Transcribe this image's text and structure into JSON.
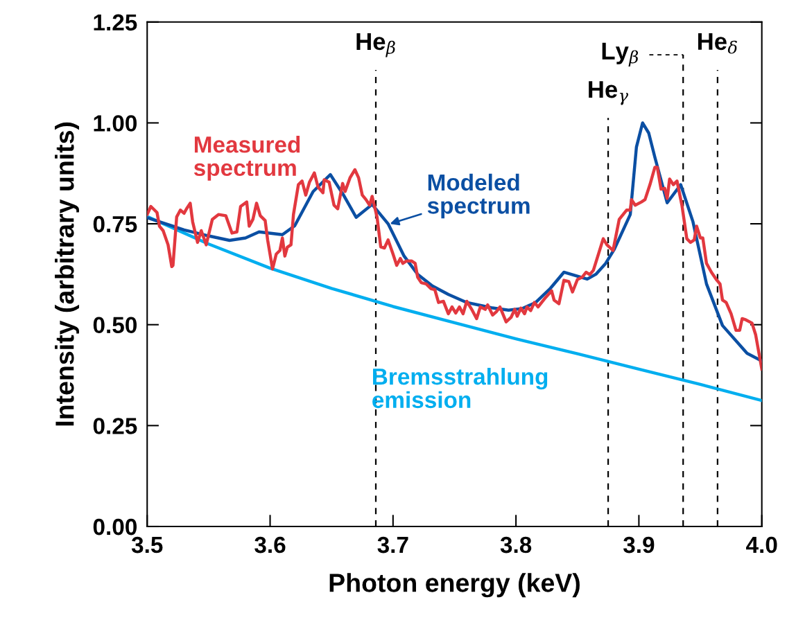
{
  "chart_data": {
    "type": "line",
    "xlabel": "Photon energy (keV)",
    "ylabel": "Intensity (arbitrary units)",
    "xlim": [
      3.5,
      4.0
    ],
    "ylim": [
      0,
      1.25
    ],
    "xticks": [
      3.5,
      3.6,
      3.7,
      3.8,
      3.9,
      {
        "value": 4.0,
        "label": "4.0"
      }
    ],
    "yticks": [
      {
        "value": 0,
        "label": "0.00"
      },
      {
        "value": 0.25,
        "label": "0.25"
      },
      {
        "value": 0.5,
        "label": "0.50"
      },
      {
        "value": 0.75,
        "label": "0.75"
      },
      {
        "value": 1.0,
        "label": "1.00"
      },
      {
        "value": 1.25,
        "label": "1.25"
      }
    ],
    "grid": false,
    "line_style": "solid",
    "marker": "none",
    "series": [
      {
        "name": "Measured spectrum",
        "color": "#e2383f",
        "x": [
          3.5,
          3.503,
          3.505,
          3.508,
          3.51,
          3.513,
          3.517,
          3.52,
          3.521,
          3.524,
          3.527,
          3.53,
          3.532,
          3.535,
          3.537,
          3.541,
          3.544,
          3.548,
          3.553,
          3.558,
          3.564,
          3.569,
          3.573,
          3.576,
          3.581,
          3.583,
          3.586,
          3.589,
          3.592,
          3.596,
          3.598,
          3.602,
          3.605,
          3.608,
          3.61,
          3.612,
          3.614,
          3.617,
          3.619,
          3.623,
          3.626,
          3.629,
          3.632,
          3.636,
          3.639,
          3.643,
          3.644,
          3.648,
          3.652,
          3.655,
          3.659,
          3.661,
          3.665,
          3.669,
          3.672,
          3.675,
          3.678,
          3.681,
          3.683,
          3.687,
          3.69,
          3.693,
          3.696,
          3.7,
          3.703,
          3.706,
          3.708,
          3.711,
          3.715,
          3.718,
          3.72,
          3.723,
          3.727,
          3.731,
          3.734,
          3.737,
          3.741,
          3.745,
          3.748,
          3.751,
          3.754,
          3.757,
          3.76,
          3.764,
          3.768,
          3.771,
          3.775,
          3.777,
          3.781,
          3.784,
          3.787,
          3.792,
          3.796,
          3.799,
          3.801,
          3.804,
          3.807,
          3.809,
          3.812,
          3.815,
          3.818,
          3.824,
          3.829,
          3.831,
          3.835,
          3.839,
          3.843,
          3.846,
          3.85,
          3.854,
          3.857,
          3.86,
          3.863,
          3.866,
          3.871,
          3.874,
          3.879,
          3.884,
          3.89,
          3.893,
          3.894,
          3.897,
          3.902,
          3.905,
          3.909,
          3.913,
          3.915,
          3.918,
          3.921,
          3.923,
          3.925,
          3.928,
          3.931,
          3.935,
          3.939,
          3.942,
          3.945,
          3.947,
          3.95,
          3.952,
          3.955,
          3.959,
          3.963,
          3.966,
          3.968,
          3.971,
          3.975,
          3.979,
          3.982,
          3.984,
          3.987,
          3.992,
          3.995,
          4.0
        ],
        "values": [
          0.773,
          0.793,
          0.787,
          0.778,
          0.744,
          0.733,
          0.698,
          0.644,
          0.647,
          0.767,
          0.784,
          0.776,
          0.787,
          0.801,
          0.755,
          0.704,
          0.733,
          0.698,
          0.761,
          0.773,
          0.77,
          0.727,
          0.73,
          0.793,
          0.804,
          0.744,
          0.761,
          0.801,
          0.77,
          0.758,
          0.71,
          0.638,
          0.675,
          0.684,
          0.715,
          0.67,
          0.692,
          0.698,
          0.773,
          0.847,
          0.856,
          0.821,
          0.853,
          0.876,
          0.841,
          0.827,
          0.859,
          0.853,
          0.796,
          0.787,
          0.85,
          0.83,
          0.864,
          0.884,
          0.864,
          0.821,
          0.81,
          0.796,
          0.818,
          0.767,
          0.693,
          0.69,
          0.71,
          0.675,
          0.647,
          0.664,
          0.652,
          0.658,
          0.658,
          0.652,
          0.618,
          0.604,
          0.601,
          0.589,
          0.587,
          0.555,
          0.558,
          0.527,
          0.544,
          0.529,
          0.544,
          0.527,
          0.558,
          0.538,
          0.515,
          0.544,
          0.538,
          0.549,
          0.524,
          0.532,
          0.544,
          0.507,
          0.518,
          0.538,
          0.521,
          0.541,
          0.527,
          0.544,
          0.535,
          0.555,
          0.544,
          0.567,
          0.584,
          0.561,
          0.552,
          0.61,
          0.607,
          0.581,
          0.612,
          0.618,
          0.63,
          0.624,
          0.635,
          0.664,
          0.713,
          0.698,
          0.684,
          0.761,
          0.784,
          0.784,
          0.81,
          0.796,
          0.804,
          0.81,
          0.847,
          0.89,
          0.89,
          0.836,
          0.838,
          0.813,
          0.861,
          0.847,
          0.856,
          0.796,
          0.713,
          0.704,
          0.71,
          0.744,
          0.715,
          0.715,
          0.652,
          0.63,
          0.612,
          0.601,
          0.561,
          0.555,
          0.527,
          0.486,
          0.486,
          0.515,
          0.512,
          0.504,
          0.475,
          0.39
        ]
      },
      {
        "name": "Modeled spectrum",
        "color": "#0b4fa3",
        "x": [
          3.5,
          3.53,
          3.55,
          3.567,
          3.58,
          3.591,
          3.61,
          3.62,
          3.635,
          3.649,
          3.66,
          3.67,
          3.683,
          3.696,
          3.709,
          3.72,
          3.732,
          3.745,
          3.76,
          3.78,
          3.794,
          3.805,
          3.816,
          3.828,
          3.839,
          3.858,
          3.865,
          3.873,
          3.88,
          3.893,
          3.898,
          3.903,
          3.908,
          3.913,
          3.923,
          3.934,
          3.944,
          3.955,
          3.968,
          3.988,
          4.0
        ],
        "values": [
          0.765,
          0.735,
          0.72,
          0.709,
          0.715,
          0.73,
          0.723,
          0.745,
          0.83,
          0.872,
          0.82,
          0.766,
          0.798,
          0.75,
          0.67,
          0.625,
          0.596,
          0.575,
          0.555,
          0.542,
          0.536,
          0.54,
          0.555,
          0.59,
          0.63,
          0.613,
          0.625,
          0.652,
          0.687,
          0.773,
          0.94,
          1.0,
          0.975,
          0.915,
          0.802,
          0.847,
          0.755,
          0.601,
          0.498,
          0.429,
          0.41
        ]
      },
      {
        "name": "Bremsstrahlung emission",
        "color": "#00aeef",
        "x": [
          3.5,
          3.55,
          3.6,
          3.65,
          3.7,
          3.75,
          3.8,
          3.85,
          3.9,
          3.95,
          4.0
        ],
        "values": [
          0.768,
          0.7,
          0.64,
          0.59,
          0.545,
          0.505,
          0.465,
          0.428,
          0.39,
          0.352,
          0.312
        ]
      }
    ],
    "ref_lines": [
      {
        "axis": "x",
        "value": 3.686,
        "label": "He$_{β}$",
        "color": "#000000",
        "line_style": "dashed"
      },
      {
        "axis": "x",
        "value": 3.875,
        "label": "He$_{γ}$",
        "color": "#000000",
        "line_style": "dashed"
      },
      {
        "axis": "x",
        "value": 3.936,
        "label": "Ly$_{β}$",
        "color": "#000000",
        "line_style": "dashed"
      },
      {
        "axis": "x",
        "value": 3.964,
        "label": "He$_{δ}$",
        "color": "#000000",
        "line_style": "dashed"
      }
    ]
  }
}
